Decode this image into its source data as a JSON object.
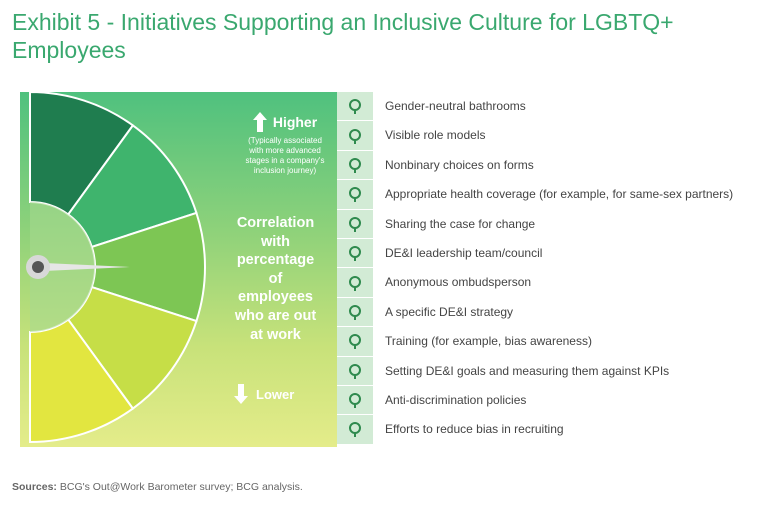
{
  "title": "Exhibit 5 - Initiatives Supporting an Inclusive Culture for LGBTQ+ Employees",
  "gauge": {
    "higher_label": "Higher",
    "higher_note": [
      "(Typically associated",
      "with more advanced",
      "stages in a company's",
      "inclusion journey)"
    ],
    "axis_title": [
      "Correlation",
      "with",
      "percentage",
      "of",
      "employees",
      "who are out",
      "at work"
    ],
    "lower_label": "Lower"
  },
  "chart_data": {
    "type": "ranked-list",
    "title": "Initiatives Supporting an Inclusive Culture for LGBTQ+ Employees",
    "axis": "Correlation with percentage of employees who are out at work",
    "scale_top": "Higher",
    "scale_bottom": "Lower",
    "segments": 5,
    "segment_colors": [
      "#1f7d4f",
      "#3fb46d",
      "#7dc654",
      "#c6de47",
      "#e2e640"
    ],
    "items": [
      {
        "rank": 1,
        "label": "Gender-neutral bathrooms",
        "icon": "gender-icon"
      },
      {
        "rank": 2,
        "label": "Visible role models",
        "icon": "person-icon"
      },
      {
        "rank": 3,
        "label": "Nonbinary choices on forms",
        "icon": "nonbinary-icon"
      },
      {
        "rank": 4,
        "label": "Appropriate health coverage (for example, for same-sex partners)",
        "icon": "heart-shield-icon"
      },
      {
        "rank": 5,
        "label": "Sharing the case for change",
        "icon": "share-icon"
      },
      {
        "rank": 6,
        "label": "DE&I leadership team/council",
        "icon": "leadership-icon"
      },
      {
        "rank": 7,
        "label": "Anonymous ombudsperson",
        "icon": "anonymous-icon"
      },
      {
        "rank": 8,
        "label": "A specific DE&I strategy",
        "icon": "chess-icon"
      },
      {
        "rank": 9,
        "label": "Training (for example, bias awareness)",
        "icon": "presentation-icon"
      },
      {
        "rank": 10,
        "label": "Setting DE&I goals and measuring them against KPIs",
        "icon": "mountain-flag-icon"
      },
      {
        "rank": 11,
        "label": "Anti-discrimination policies",
        "icon": "document-icon"
      },
      {
        "rank": 12,
        "label": "Efforts to reduce bias in recruiting",
        "icon": "magnifier-icon"
      }
    ]
  },
  "source": {
    "label": "Sources:",
    "text": "BCG's Out@Work Barometer survey; BCG analysis."
  }
}
